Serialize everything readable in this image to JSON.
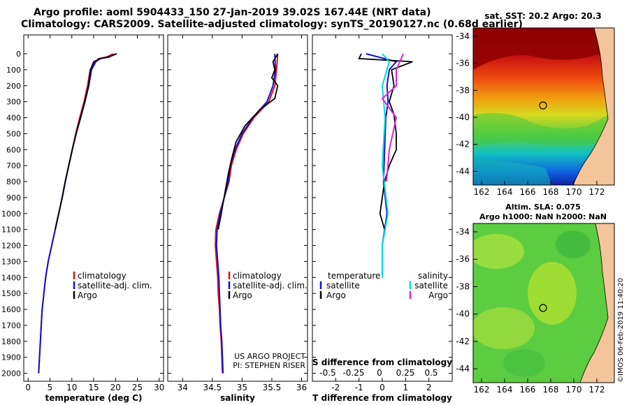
{
  "title_line1": "Argo profile: aoml 5904433_150 27-Jan-2019 39.02S 167.44E (NRT data)",
  "title_line2": "Climatology: CARS2009. Satellite-adjusted climatology: synTS_20190127.nc (0.68d earlier)",
  "colors": {
    "clim": "#e01010",
    "sat": "#1010d8",
    "argo": "#000000",
    "sal_sat": "#00d8d8",
    "sal_argo": "#e020e0"
  },
  "chart_data": [
    {
      "type": "line",
      "panel": "temperature",
      "xlabel": "temperature (deg C)",
      "ylabel": "depth",
      "xlim": [
        -1,
        31
      ],
      "ylim": [
        2050,
        0
      ],
      "xticks": [
        "0",
        "5",
        "10",
        "15",
        "20",
        "25",
        "30"
      ],
      "yticks": [
        "0",
        "100",
        "200",
        "300",
        "400",
        "500",
        "600",
        "700",
        "800",
        "900",
        "1000",
        "1100",
        "1200",
        "1300",
        "1400",
        "1500",
        "1600",
        "1700",
        "1800",
        "1900",
        "2000"
      ],
      "legend": [
        "climatology",
        "satellite-adj. clim.",
        "Argo"
      ],
      "series": [
        {
          "name": "climatology",
          "color": "clim",
          "points": [
            [
              19.5,
              0
            ],
            [
              18.0,
              20
            ],
            [
              16.2,
              30
            ],
            [
              15.2,
              50
            ],
            [
              14.2,
              100
            ],
            [
              13.6,
              200
            ],
            [
              12.8,
              300
            ],
            [
              11.8,
              400
            ],
            [
              10.9,
              500
            ],
            [
              10.1,
              600
            ],
            [
              9.3,
              700
            ],
            [
              8.5,
              800
            ],
            [
              7.8,
              900
            ],
            [
              7.0,
              1000
            ],
            [
              6.2,
              1100
            ],
            [
              5.4,
              1200
            ],
            [
              4.6,
              1300
            ],
            [
              4.0,
              1400
            ],
            [
              3.6,
              1500
            ],
            [
              3.2,
              1600
            ],
            [
              3.0,
              1700
            ],
            [
              2.8,
              1800
            ],
            [
              2.6,
              1900
            ],
            [
              2.4,
              2000
            ]
          ]
        },
        {
          "name": "satellite-adj. clim.",
          "color": "sat",
          "points": [
            [
              20.2,
              0
            ],
            [
              18.5,
              20
            ],
            [
              16.5,
              30
            ],
            [
              15.5,
              50
            ],
            [
              14.5,
              100
            ],
            [
              13.9,
              200
            ],
            [
              13.0,
              300
            ],
            [
              12.0,
              400
            ],
            [
              11.0,
              500
            ],
            [
              10.1,
              600
            ],
            [
              9.3,
              700
            ],
            [
              8.5,
              800
            ],
            [
              7.8,
              900
            ],
            [
              7.0,
              1000
            ],
            [
              6.2,
              1100
            ],
            [
              5.4,
              1200
            ],
            [
              4.6,
              1300
            ],
            [
              4.0,
              1400
            ],
            [
              3.6,
              1500
            ],
            [
              3.2,
              1600
            ],
            [
              3.0,
              1700
            ],
            [
              2.8,
              1800
            ],
            [
              2.6,
              1900
            ],
            [
              2.4,
              2000
            ]
          ]
        },
        {
          "name": "Argo",
          "color": "argo",
          "points": [
            [
              20.3,
              0
            ],
            [
              18.3,
              20
            ],
            [
              16.5,
              30
            ],
            [
              15.0,
              50
            ],
            [
              14.3,
              100
            ],
            [
              13.8,
              200
            ],
            [
              13.0,
              300
            ],
            [
              12.0,
              400
            ],
            [
              11.0,
              500
            ],
            [
              10.1,
              600
            ],
            [
              9.3,
              700
            ],
            [
              8.5,
              800
            ],
            [
              7.8,
              900
            ],
            [
              7.0,
              1000
            ],
            [
              6.2,
              1100
            ]
          ]
        }
      ]
    },
    {
      "type": "line",
      "panel": "salinity",
      "xlabel": "salinity",
      "xlim": [
        33.75,
        36.1
      ],
      "ylim": [
        2050,
        0
      ],
      "xticks": [
        "34",
        "34.5",
        "35",
        "35.5",
        "36"
      ],
      "legend": [
        "climatology",
        "satellite-adj. clim.",
        "Argo"
      ],
      "credit": [
        "US ARGO PROJECT",
        "PI: STEPHEN RISER"
      ],
      "series": [
        {
          "name": "climatology",
          "color": "clim",
          "points": [
            [
              35.6,
              0
            ],
            [
              35.58,
              100
            ],
            [
              35.55,
              200
            ],
            [
              35.45,
              300
            ],
            [
              35.2,
              400
            ],
            [
              35.02,
              500
            ],
            [
              34.9,
              600
            ],
            [
              34.82,
              700
            ],
            [
              34.78,
              800
            ],
            [
              34.7,
              900
            ],
            [
              34.62,
              1000
            ],
            [
              34.56,
              1100
            ],
            [
              34.55,
              1200
            ],
            [
              34.57,
              1300
            ],
            [
              34.59,
              1400
            ],
            [
              34.6,
              1500
            ],
            [
              34.62,
              1600
            ],
            [
              34.63,
              1700
            ],
            [
              34.65,
              1800
            ],
            [
              34.66,
              1900
            ],
            [
              34.67,
              2000
            ]
          ]
        },
        {
          "name": "satellite-adj. clim.",
          "color": "sat",
          "points": [
            [
              35.55,
              0
            ],
            [
              35.56,
              100
            ],
            [
              35.52,
              200
            ],
            [
              35.42,
              300
            ],
            [
              35.18,
              400
            ],
            [
              35.0,
              500
            ],
            [
              34.88,
              600
            ],
            [
              34.8,
              700
            ],
            [
              34.77,
              800
            ],
            [
              34.7,
              900
            ],
            [
              34.63,
              1000
            ],
            [
              34.58,
              1100
            ],
            [
              34.57,
              1200
            ],
            [
              34.59,
              1300
            ],
            [
              34.61,
              1400
            ],
            [
              34.62,
              1500
            ],
            [
              34.63,
              1600
            ],
            [
              34.64,
              1700
            ],
            [
              34.66,
              1800
            ],
            [
              34.67,
              1900
            ],
            [
              34.68,
              2000
            ]
          ]
        },
        {
          "name": "Argo",
          "color": "argo",
          "points": [
            [
              35.6,
              0
            ],
            [
              35.52,
              50
            ],
            [
              35.55,
              100
            ],
            [
              35.5,
              150
            ],
            [
              35.6,
              200
            ],
            [
              35.55,
              280
            ],
            [
              35.3,
              350
            ],
            [
              35.05,
              450
            ],
            [
              34.9,
              550
            ],
            [
              34.83,
              650
            ],
            [
              34.77,
              750
            ],
            [
              34.72,
              850
            ],
            [
              34.65,
              1000
            ],
            [
              34.6,
              1100
            ]
          ]
        }
      ]
    },
    {
      "type": "line",
      "panel": "difference",
      "xlabel": "T difference from climatology",
      "xlim": [
        -3,
        3
      ],
      "ylim": [
        2050,
        0
      ],
      "xticks": [
        "-2",
        "-1",
        "0",
        "1",
        "2"
      ],
      "s_axis_label": "S difference from climatology",
      "s_xticks": [
        "-0.5",
        "-0.25",
        "0",
        "0.25",
        "0.5"
      ],
      "legend_left": [
        "temperature",
        "satellite",
        "Argo"
      ],
      "legend_right": [
        "salinity",
        "satellite",
        "Argo"
      ],
      "series": [
        {
          "name": "T satellite",
          "color": "sat",
          "points": [
            [
              -0.7,
              0
            ],
            [
              0.6,
              50
            ],
            [
              0.3,
              100
            ],
            [
              0.2,
              200
            ],
            [
              0.25,
              300
            ],
            [
              0.15,
              400
            ],
            [
              0.1,
              600
            ],
            [
              0.05,
              800
            ],
            [
              0.2,
              1000
            ],
            [
              0.0,
              1200
            ],
            [
              0.0,
              1400
            ]
          ]
        },
        {
          "name": "T Argo",
          "color": "argo",
          "points": [
            [
              -0.9,
              0
            ],
            [
              -1.0,
              30
            ],
            [
              1.3,
              50
            ],
            [
              0.4,
              100
            ],
            [
              0.5,
              200
            ],
            [
              0.3,
              300
            ],
            [
              0.5,
              380
            ],
            [
              0.6,
              500
            ],
            [
              0.6,
              600
            ],
            [
              0.3,
              700
            ],
            [
              0.1,
              800
            ],
            [
              -0.1,
              1000
            ],
            [
              0.1,
              1100
            ]
          ]
        },
        {
          "name": "S satellite",
          "color": "sal_sat",
          "points": [
            [
              0.0,
              0
            ],
            [
              0.05,
              50
            ],
            [
              0.0,
              200
            ],
            [
              0.02,
              400
            ],
            [
              0.0,
              700
            ],
            [
              0.04,
              1000
            ],
            [
              0.0,
              1200
            ],
            [
              0.0,
              1400
            ]
          ]
        },
        {
          "name": "S Argo",
          "color": "sal_argo",
          "points": [
            [
              0.15,
              0
            ],
            [
              0.1,
              100
            ],
            [
              0.1,
              200
            ],
            [
              0.0,
              280
            ],
            [
              0.1,
              400
            ],
            [
              0.05,
              600
            ],
            [
              0.03,
              800
            ]
          ]
        }
      ]
    }
  ],
  "maps": [
    {
      "title": "sat. SST: 20.2 Argo: 20.3",
      "yticks": [
        "-34",
        "-36",
        "-38",
        "-40",
        "-42",
        "-44"
      ],
      "xticks": [
        "162",
        "164",
        "166",
        "168",
        "170",
        "172"
      ]
    },
    {
      "title_line1": "Altim. SLA: 0.075",
      "title_line2": "Argo h1000: NaN h2000: NaN",
      "yticks": [
        "-34",
        "-36",
        "-38",
        "-40",
        "-42",
        "-44"
      ],
      "xticks": [
        "162",
        "164",
        "166",
        "168",
        "170",
        "172"
      ]
    }
  ],
  "watermark": "©IMOS 06-Feb-2019 11:40:20"
}
